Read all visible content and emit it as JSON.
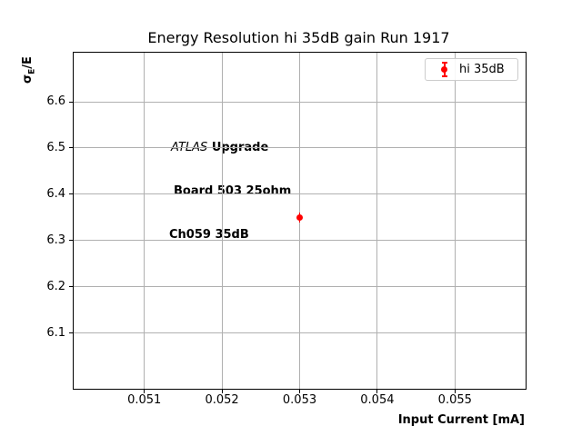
{
  "window": {
    "background": "#ffffff"
  },
  "colors": {
    "series_red": "#ff0000",
    "grid": "#b0b0b0",
    "frame": "#000000",
    "text": "#000000",
    "legend_border": "#cccccc"
  },
  "annotation": {
    "line1_italic": "ATLAS",
    "line1_bold": "Upgrade",
    "line2": "Board 503 25ohm",
    "line3": "Ch059 35dB"
  },
  "legend": {
    "label": "hi 35dB"
  },
  "ylabel_parts": {
    "base": "σ",
    "sub": "E",
    "rest": "/E"
  },
  "chart_data": {
    "type": "scatter",
    "title": "Energy Resolution hi 35dB gain Run 1917",
    "xlabel": "Input Current [mA]",
    "ylabel": "σ_E/E",
    "grid": true,
    "legend_position": "upper right",
    "xlim": [
      0.05009,
      0.05591
    ],
    "ylim": [
      5.98,
      6.706
    ],
    "x_ticks": [
      0.051,
      0.052,
      0.053,
      0.054,
      0.055
    ],
    "x_tick_labels": [
      "0.051",
      "0.052",
      "0.053",
      "0.054",
      "0.055"
    ],
    "y_ticks": [
      6.1,
      6.2,
      6.3,
      6.4,
      6.5,
      6.6
    ],
    "y_tick_labels": [
      "6.1",
      "6.2",
      "6.3",
      "6.4",
      "6.5",
      "6.6"
    ],
    "series": [
      {
        "name": "hi 35dB",
        "color": "#ff0000",
        "marker": "circle-with-errorbar",
        "x": [
          0.053
        ],
        "y": [
          6.35
        ],
        "y_err": [
          0.01
        ]
      }
    ]
  }
}
